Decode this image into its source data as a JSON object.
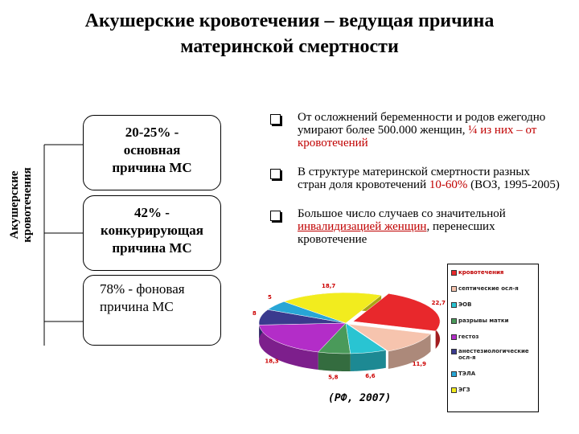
{
  "title": {
    "line1": "Акушерские кровотечения – ведущая причина",
    "line2": "материнской смертности"
  },
  "side_label": {
    "line1": "Акушерские",
    "line2": "кровотечения"
  },
  "causes": [
    {
      "line1": "20-25% -",
      "line2": "основная",
      "line3": "причина МС"
    },
    {
      "line1": "42% -",
      "line2": "конкурирующая",
      "line3": "причина МС"
    },
    {
      "line1": "78% - фоновая",
      "line2": "причина  МС"
    }
  ],
  "bullets": [
    {
      "part1": "От осложнений беременности и родов ежегодно умирают более 500.000 женщин, ",
      "part2": "¼ из  них – от кровотечений"
    },
    {
      "part1": "В структуре материнской смертности разных стран доля кровотечений ",
      "part2": "10-60%",
      "part3": " (ВОЗ, 1995-2005)"
    },
    {
      "part1": "Большое число случаев со значительной ",
      "part2": "инвалидизацией женщин",
      "part3": ", перенесших кровотечение"
    }
  ],
  "chart_data": {
    "type": "pie",
    "style": "3d exploded",
    "slices": [
      {
        "label": "кровотечения",
        "value": 22.7,
        "color": "#e8282c"
      },
      {
        "label": "септические осл-я",
        "value": 11.9,
        "color": "#f6c4ae"
      },
      {
        "label": "ЭОВ",
        "value": 6.6,
        "color": "#29c4d2"
      },
      {
        "label": "разрывы матки",
        "value": 5.8,
        "color": "#4a9a5a"
      },
      {
        "label": "гестоз",
        "value": 18.3,
        "color": "#b32dc8"
      },
      {
        "label": "анестезиологические осл-я",
        "value": 8,
        "color": "#3a3a8e"
      },
      {
        "label": "ТЭЛА",
        "value": 5,
        "color": "#28a6d6"
      },
      {
        "label": "ЭГЗ",
        "value": 18.7,
        "color": "#f2ec1e"
      }
    ],
    "data_labels": [
      "22,7",
      "11,9",
      "6,6",
      "5,8",
      "18,3",
      "8",
      "5",
      "18,7"
    ],
    "legend_position": "right",
    "source": "(РФ, 2007)"
  },
  "colors": {
    "accent_red": "#c00000"
  }
}
